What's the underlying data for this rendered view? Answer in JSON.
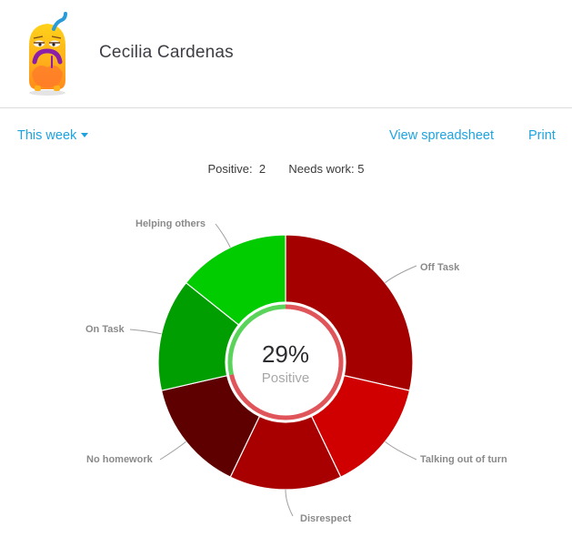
{
  "student": {
    "name": "Cecilia Cardenas",
    "avatar": "monster-avatar-sad-orange"
  },
  "toolbar": {
    "period_label": "This week",
    "view_spreadsheet_label": "View spreadsheet",
    "print_label": "Print"
  },
  "summary": {
    "positive_label": "Positive:",
    "positive_count": "2",
    "needs_work_label": "Needs work:",
    "needs_work_count": "5"
  },
  "center": {
    "percent": "29%",
    "label": "Positive"
  },
  "colors": {
    "link": "#1ea3e0",
    "positive_ring": "#5ad35a",
    "negative_ring": "#e0555a"
  },
  "chart_data": {
    "type": "pie",
    "variant": "donut",
    "title": "",
    "center_text": "29% Positive",
    "categories": [
      "Off Task",
      "Talking out of turn",
      "Disrespect",
      "No homework",
      "On Task",
      "Helping others"
    ],
    "values": [
      2,
      1,
      1,
      1,
      1,
      1
    ],
    "kinds": [
      "needs_work",
      "needs_work",
      "needs_work",
      "needs_work",
      "positive",
      "positive"
    ],
    "colors": [
      "#a50000",
      "#d00000",
      "#a80000",
      "#5e0000",
      "#009e00",
      "#00cc00"
    ],
    "totals": {
      "positive": 2,
      "needs_work": 5,
      "positive_percent": 29
    },
    "legend": "none (callout labels)"
  }
}
